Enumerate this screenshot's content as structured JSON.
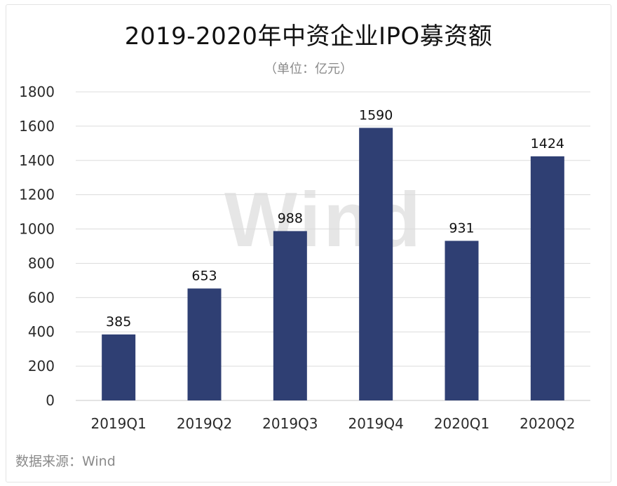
{
  "source": {
    "label": "数据来源：Wind"
  },
  "watermark": "Wind",
  "colors": {
    "bar": "#2f3f73",
    "grid": "#dcdcdc"
  },
  "chart_data": {
    "type": "bar",
    "title": "2019-2020年中资企业IPO募资额",
    "subtitle": "（单位：亿元）",
    "categories": [
      "2019Q1",
      "2019Q2",
      "2019Q3",
      "2019Q4",
      "2020Q1",
      "2020Q2"
    ],
    "values": [
      385,
      653,
      988,
      1590,
      931,
      1424
    ],
    "ylim": [
      0,
      1800
    ],
    "yticks": [
      0,
      200,
      400,
      600,
      800,
      1000,
      1200,
      1400,
      1600,
      1800
    ],
    "grid": true,
    "legend": "none"
  }
}
